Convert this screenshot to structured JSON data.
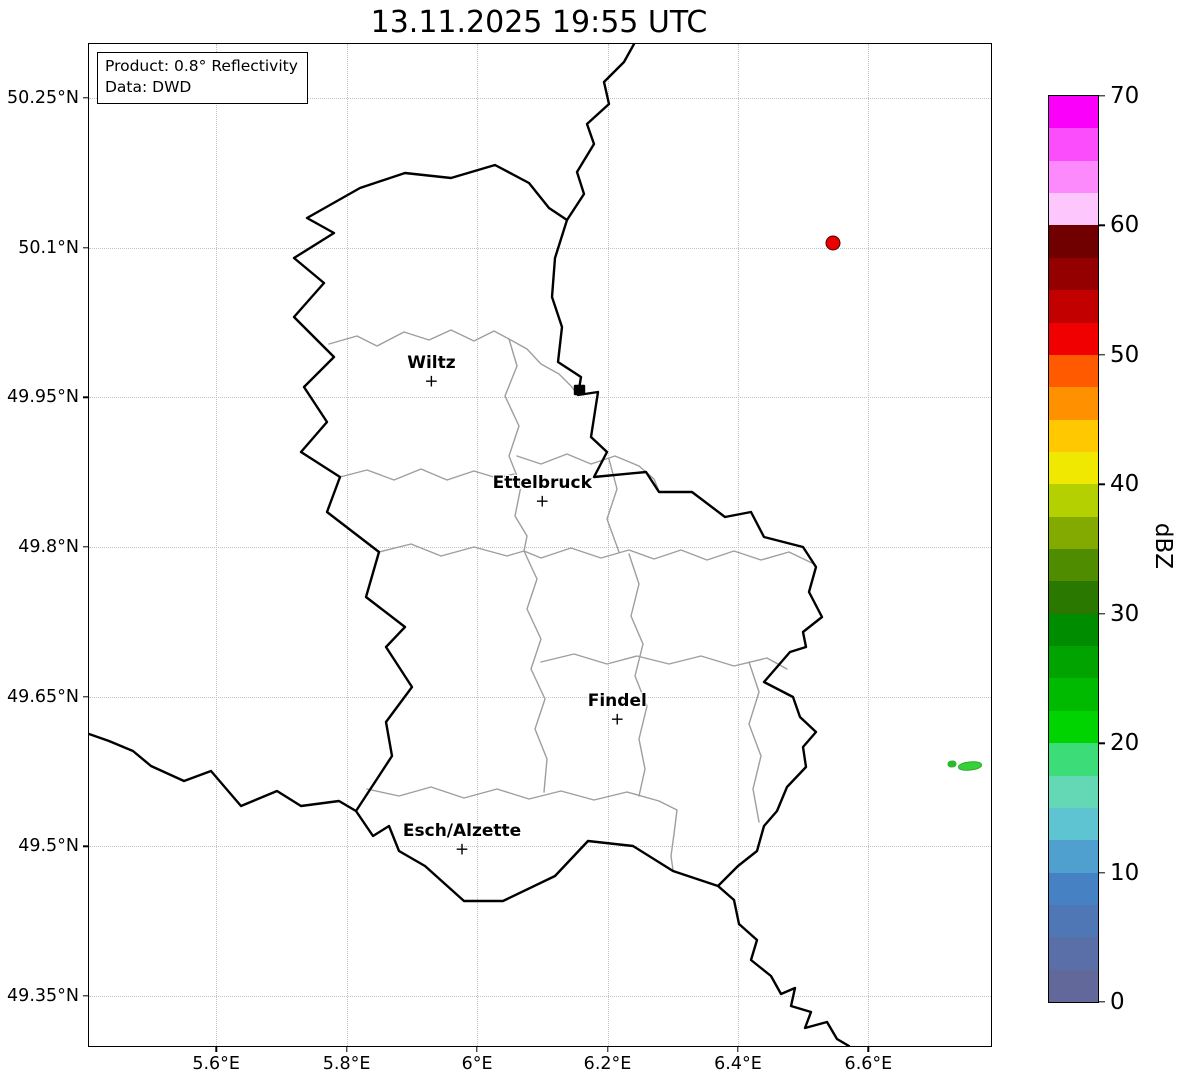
{
  "title": "13.11.2025 19:55 UTC",
  "infobox": {
    "line1": "Product: 0.8° Reflectivity",
    "line2": "Data: DWD"
  },
  "map": {
    "extent": {
      "lon_min": 5.405,
      "lon_max": 6.788,
      "lat_min": 49.3,
      "lat_max": 50.304
    },
    "cities": [
      {
        "name": "Wiltz",
        "lon": 5.93,
        "lat": 49.965
      },
      {
        "name": "Ettelbruck",
        "lon": 6.1,
        "lat": 49.845
      },
      {
        "name": "Findel",
        "lon": 6.215,
        "lat": 49.627
      },
      {
        "name": "Esch/Alzette",
        "lon": 5.977,
        "lat": 49.496
      }
    ],
    "marker_glyph": "+"
  },
  "axes": {
    "lat_ticks": [
      {
        "value": 50.25,
        "label": "50.25°N"
      },
      {
        "value": 50.1,
        "label": "50.1°N"
      },
      {
        "value": 49.95,
        "label": "49.95°N"
      },
      {
        "value": 49.8,
        "label": "49.8°N"
      },
      {
        "value": 49.65,
        "label": "49.65°N"
      },
      {
        "value": 49.5,
        "label": "49.5°N"
      },
      {
        "value": 49.35,
        "label": "49.35°N"
      }
    ],
    "lon_ticks": [
      {
        "value": 5.6,
        "label": "5.6°E"
      },
      {
        "value": 5.8,
        "label": "5.8°E"
      },
      {
        "value": 6.0,
        "label": "6°E"
      },
      {
        "value": 6.2,
        "label": "6.2°E"
      },
      {
        "value": 6.4,
        "label": "6.4°E"
      },
      {
        "value": 6.6,
        "label": "6.6°E"
      }
    ]
  },
  "radar": {
    "echoes": [
      {
        "name": "echo-cell-northeast",
        "lon": 6.545,
        "lat": 50.105,
        "w": 13,
        "h": 13,
        "shape": "dot",
        "color": "#e90000",
        "edge": "#4a0000"
      },
      {
        "name": "echo-cell-east-small",
        "lon": 6.728,
        "lat": 49.583,
        "w": 7,
        "h": 5,
        "shape": "streak",
        "color": "#2db82d",
        "edge": "#2db82d"
      },
      {
        "name": "echo-cell-east",
        "lon": 6.756,
        "lat": 49.581,
        "w": 22,
        "h": 7,
        "shape": "streak",
        "color": "#38d038",
        "edge": "#2aa82a"
      }
    ]
  },
  "colorbar": {
    "unit": "dBZ",
    "min": 0,
    "max": 70,
    "ticks": [
      {
        "value": 0,
        "label": "0"
      },
      {
        "value": 10,
        "label": "10"
      },
      {
        "value": 20,
        "label": "20"
      },
      {
        "value": 30,
        "label": "30"
      },
      {
        "value": 40,
        "label": "40"
      },
      {
        "value": 50,
        "label": "50"
      },
      {
        "value": 60,
        "label": "60"
      },
      {
        "value": 70,
        "label": "70"
      }
    ],
    "bands_top_to_bottom": [
      "#fa00fa",
      "#fb4dfb",
      "#fc8afc",
      "#fdc6fd",
      "#700000",
      "#940000",
      "#c30000",
      "#f00000",
      "#ff5a00",
      "#ff9000",
      "#ffc800",
      "#f0e800",
      "#b4d000",
      "#82aa00",
      "#508c00",
      "#2a7800",
      "#008c00",
      "#00a300",
      "#00ba00",
      "#00d400",
      "#3cdc78",
      "#64d8b4",
      "#5fc4d2",
      "#4fa0cf",
      "#4682c3",
      "#4f77b5",
      "#5a6fa8",
      "#62699a"
    ]
  }
}
